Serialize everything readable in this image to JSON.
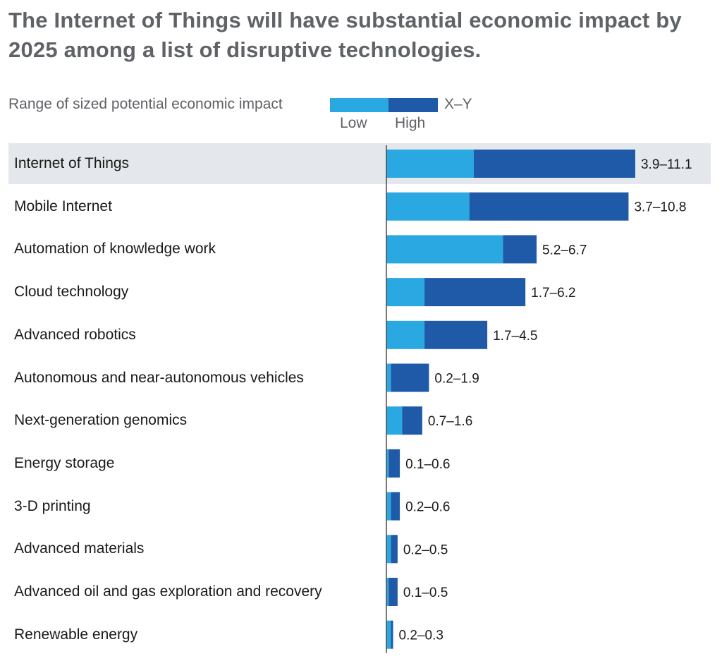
{
  "title": "The Internet of Things will have substantial economic impact by 2025 among a list of disruptive technologies.",
  "legend": {
    "label": "Range of sized potential economic impact",
    "low": "Low",
    "high": "High",
    "range": "X–Y"
  },
  "colors": {
    "low": "#29a8e2",
    "high": "#1e5aa8",
    "highlight": "#e4e8ec",
    "axis": "#4a4a4a"
  },
  "chart_data": {
    "type": "bar",
    "orientation": "horizontal",
    "stacked_range": true,
    "xlim": [
      0,
      11.2
    ],
    "grid": false,
    "highlighted_category": "Internet of Things",
    "categories": [
      "Internet of Things",
      "Mobile Internet",
      "Automation of knowledge work",
      "Cloud technology",
      "Advanced robotics",
      "Autonomous and near-autonomous vehicles",
      "Next-generation genomics",
      "Energy storage",
      "3-D printing",
      "Advanced materials",
      "Advanced oil and gas exploration and recovery",
      "Renewable energy"
    ],
    "low": [
      3.9,
      3.7,
      5.2,
      1.7,
      1.7,
      0.2,
      0.7,
      0.1,
      0.2,
      0.2,
      0.1,
      0.2
    ],
    "high": [
      11.1,
      10.8,
      6.7,
      6.2,
      4.5,
      1.9,
      1.6,
      0.6,
      0.6,
      0.5,
      0.5,
      0.3
    ],
    "value_labels": [
      "3.9–11.1",
      "3.7–10.8",
      "5.2–6.7",
      "1.7–6.2",
      "1.7–4.5",
      "0.2–1.9",
      "0.7–1.6",
      "0.1–0.6",
      "0.2–0.6",
      "0.2–0.5",
      "0.1–0.5",
      "0.2–0.3"
    ]
  }
}
